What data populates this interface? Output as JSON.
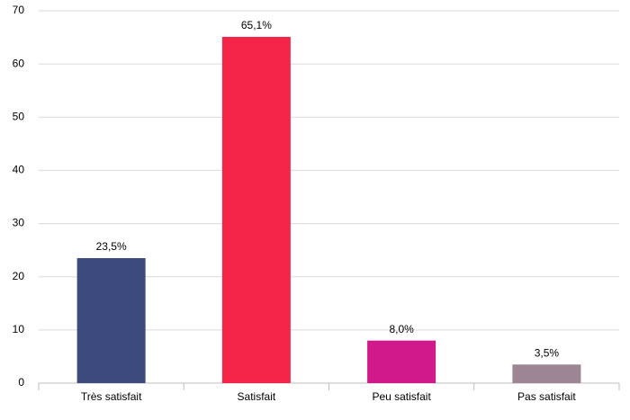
{
  "chart_data": {
    "type": "bar",
    "categories": [
      "Très satisfait",
      "Satisfait",
      "Peu satisfait",
      "Pas satisfait"
    ],
    "values": [
      23.5,
      65.1,
      8.0,
      3.5
    ],
    "value_labels": [
      "23,5%",
      "65,1%",
      "8,0%",
      "3,5%"
    ],
    "colors": [
      "#3d4a7c",
      "#f5254a",
      "#d01a8c",
      "#9e8596"
    ],
    "ylim": [
      0,
      70
    ],
    "yticks": [
      0,
      10,
      20,
      30,
      40,
      50,
      60,
      70
    ],
    "grid": true
  }
}
